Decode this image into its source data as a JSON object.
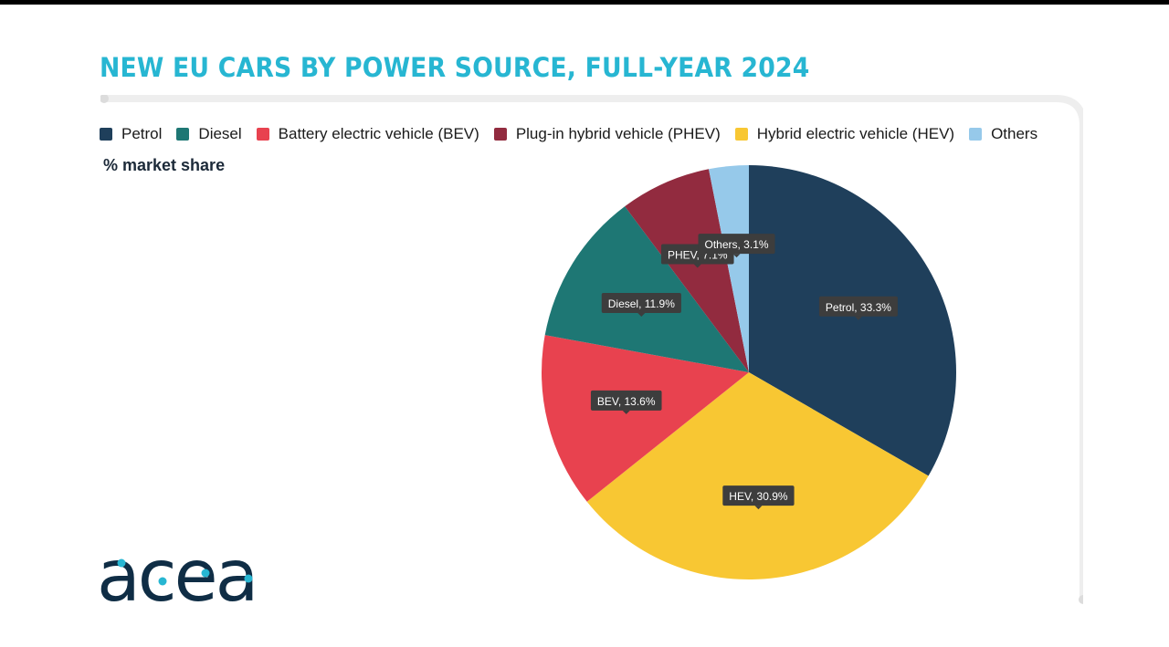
{
  "chart_data": {
    "type": "pie",
    "title": "NEW EU CARS BY POWER SOURCE, FULL-YEAR 2024",
    "subtitle": "% market share",
    "legend_position": "top-left",
    "legend": [
      {
        "label": "Petrol",
        "color": "#1f3f5b"
      },
      {
        "label": "Diesel",
        "color": "#1e7774"
      },
      {
        "label": "Battery electric vehicle (BEV)",
        "color": "#e8424f"
      },
      {
        "label": "Plug-in hybrid vehicle (PHEV)",
        "color": "#922b3f"
      },
      {
        "label": "Hybrid electric vehicle (HEV)",
        "color": "#f8c733"
      },
      {
        "label": "Others",
        "color": "#96c9ea"
      }
    ],
    "slices": [
      {
        "label": "Petrol",
        "value": 33.3,
        "data_label": "Petrol, 33.3%",
        "color": "#1f3f5b"
      },
      {
        "label": "HEV",
        "value": 30.9,
        "data_label": "HEV, 30.9%",
        "color": "#f8c733"
      },
      {
        "label": "BEV",
        "value": 13.6,
        "data_label": "BEV, 13.6%",
        "color": "#e8424f"
      },
      {
        "label": "Diesel",
        "value": 11.9,
        "data_label": "Diesel, 11.9%",
        "color": "#1e7774"
      },
      {
        "label": "PHEV",
        "value": 7.1,
        "data_label": "PHEV, 7.1%",
        "color": "#922b3f"
      },
      {
        "label": "Others",
        "value": 3.1,
        "data_label": "Others, 3.1%",
        "color": "#96c9ea"
      }
    ]
  },
  "brand": {
    "logo_text": "acea",
    "title_color": "#27b6d2",
    "logo_color": "#0f2d45",
    "logo_dot_color": "#27b6d2"
  }
}
